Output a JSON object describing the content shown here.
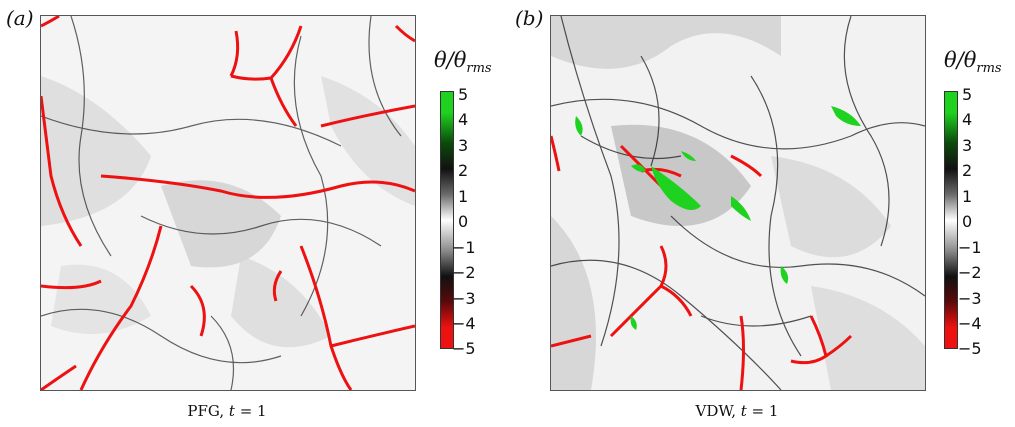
{
  "panels": [
    {
      "letter": "(a)",
      "caption_label": "PFG, ",
      "caption_var": "t",
      "caption_eq": " = 1",
      "colorbar": {
        "title_main": "θ/θ",
        "title_sub": "rms",
        "ticks": [
          "5",
          "4",
          "3",
          "2",
          "1",
          "0",
          "−1",
          "−2",
          "−3",
          "−4",
          "−5"
        ]
      }
    },
    {
      "letter": "(b)",
      "caption_label": "VDW, ",
      "caption_var": "t",
      "caption_eq": " = 1",
      "colorbar": {
        "title_main": "θ/θ",
        "title_sub": "rms",
        "ticks": [
          "5",
          "4",
          "3",
          "2",
          "1",
          "0",
          "−1",
          "−2",
          "−3",
          "−4",
          "−5"
        ]
      }
    }
  ],
  "colors": {
    "positive_extreme": "#1fd21f",
    "negative_extreme": "#ee1111",
    "dark": "#111111",
    "neutral": "#ffffff"
  }
}
